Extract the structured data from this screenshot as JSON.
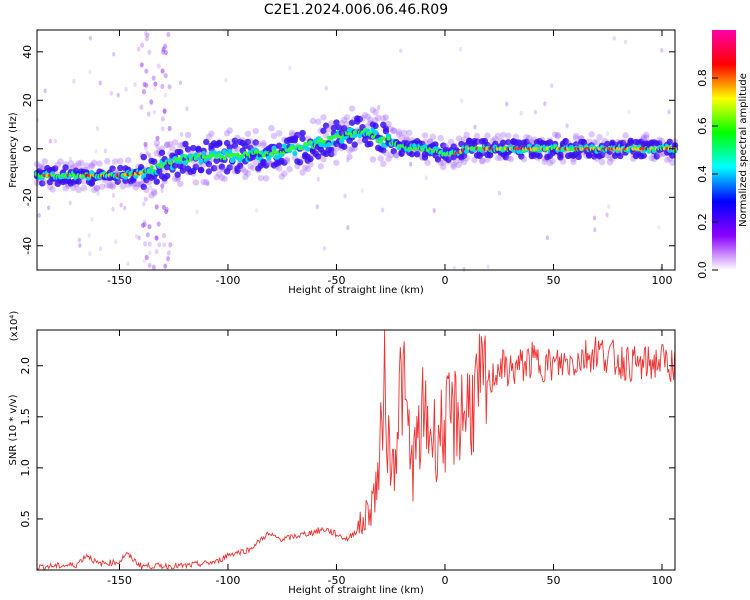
{
  "chart_data": [
    {
      "type": "heatmap",
      "title": "C2E1.2024.006.06.46.R09",
      "xlabel": "Height of straight line (km)",
      "ylabel": "Frequency (Hz)",
      "xlim": [
        -188,
        106
      ],
      "ylim": [
        -50,
        49
      ],
      "x_ticks": [
        -150,
        -100,
        -50,
        0,
        50,
        100
      ],
      "y_ticks": [
        -40,
        -20,
        0,
        20,
        40
      ],
      "colorbar": {
        "label": "Normalized spectral amplitude",
        "range": [
          0,
          1
        ],
        "ticks": [
          "0.0",
          "0.2",
          "0.4",
          "0.6",
          "0.8"
        ],
        "colors": [
          "#ffffff",
          "#8a00ff",
          "#0000ff",
          "#00ffff",
          "#00ff00",
          "#ffff00",
          "#ff0000",
          "#ff00aa"
        ]
      },
      "ridge": {
        "x": [
          -188,
          -150,
          -140,
          -120,
          -100,
          -80,
          -60,
          -45,
          -35,
          -30,
          -25,
          -20,
          -10,
          0,
          5,
          10,
          30,
          60,
          106
        ],
        "y": [
          -11,
          -11,
          -10,
          -4,
          -3,
          -2,
          2,
          6,
          7,
          4,
          3,
          1,
          0,
          -2,
          -2,
          0,
          0,
          0,
          0
        ]
      }
    },
    {
      "type": "line",
      "xlabel": "Height of straight line (km)",
      "ylabel": "SNR (10 * v/v)",
      "y_multiplier": "(x10⁴)",
      "xlim": [
        -188,
        106
      ],
      "ylim": [
        0,
        2.35
      ],
      "x_ticks": [
        -150,
        -100,
        -50,
        0,
        50,
        100
      ],
      "y_ticks": [
        "0.5",
        "1.0",
        "1.5",
        "2.0"
      ],
      "series": [
        {
          "color": "#ee3333",
          "x": [
            -188,
            -170,
            -165,
            -160,
            -150,
            -147,
            -140,
            -120,
            -105,
            -100,
            -90,
            -82,
            -75,
            -65,
            -55,
            -45,
            -38,
            -33,
            -30,
            -28,
            -26,
            -24,
            -20,
            -15,
            -10,
            -5,
            0,
            5,
            10,
            15,
            20,
            25,
            30,
            40,
            50,
            60,
            70,
            80,
            90,
            100,
            106
          ],
          "y": [
            0.03,
            0.05,
            0.15,
            0.06,
            0.08,
            0.16,
            0.04,
            0.04,
            0.08,
            0.15,
            0.2,
            0.35,
            0.3,
            0.35,
            0.4,
            0.3,
            0.45,
            0.7,
            1.0,
            2.1,
            1.2,
            1.0,
            1.9,
            1.0,
            1.5,
            1.3,
            1.4,
            1.5,
            1.6,
            1.7,
            1.8,
            2.0,
            1.95,
            2.05,
            2.0,
            2.05,
            2.15,
            2.05,
            2.0,
            2.05,
            2.0
          ]
        }
      ]
    }
  ]
}
